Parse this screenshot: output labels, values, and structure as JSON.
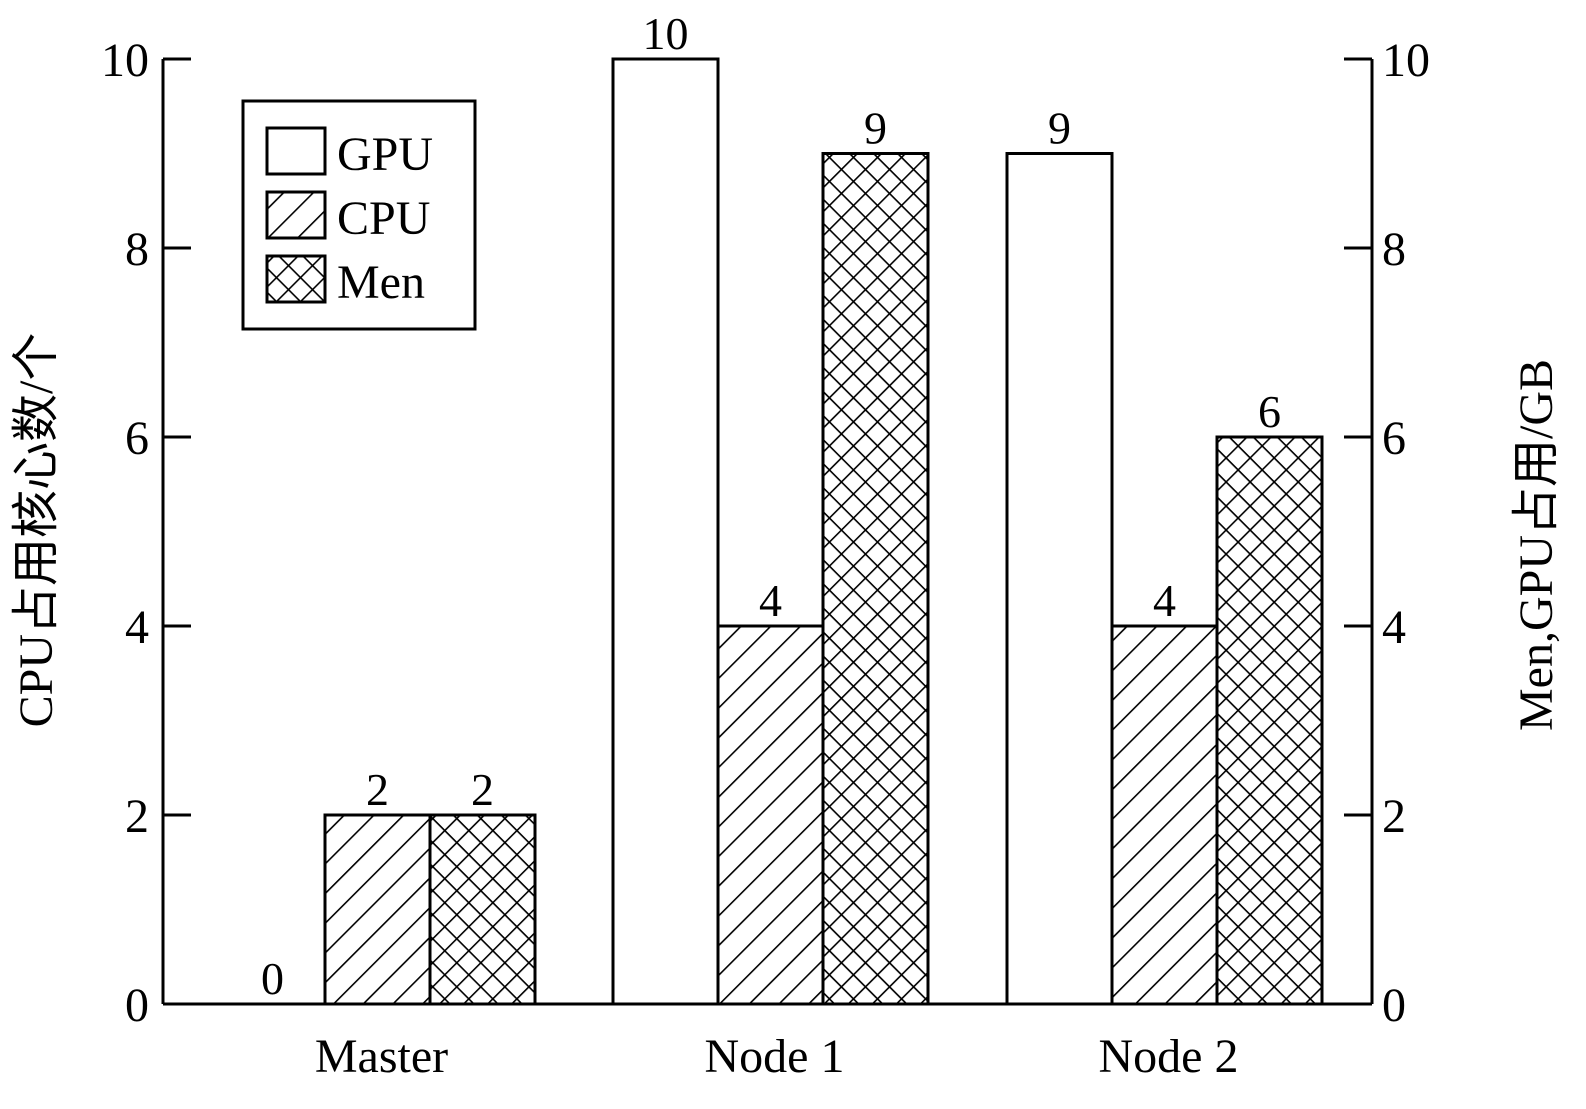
{
  "chart_data": {
    "type": "bar",
    "categories": [
      "Master",
      "Node 1",
      "Node 2"
    ],
    "series": [
      {
        "name": "GPU",
        "values": [
          0,
          10,
          9
        ],
        "pattern": "none",
        "axis": "right"
      },
      {
        "name": "CPU",
        "values": [
          2,
          4,
          4
        ],
        "pattern": "diagonal-hatch",
        "axis": "left"
      },
      {
        "name": "Men",
        "values": [
          2,
          9,
          6
        ],
        "pattern": "cross-hatch",
        "axis": "right"
      }
    ],
    "ylabel_left": "CPU占用核心数/个",
    "ylabel_right": "Men,GPU占用/GB",
    "xlabel": "",
    "title": "",
    "ylim": [
      0,
      10
    ],
    "yticks": [
      0,
      2,
      4,
      6,
      8,
      10
    ],
    "grid": false,
    "legend_position": "top-left",
    "data_labels": true,
    "colors": {
      "fill": "#ffffff",
      "stroke": "#000000"
    }
  }
}
